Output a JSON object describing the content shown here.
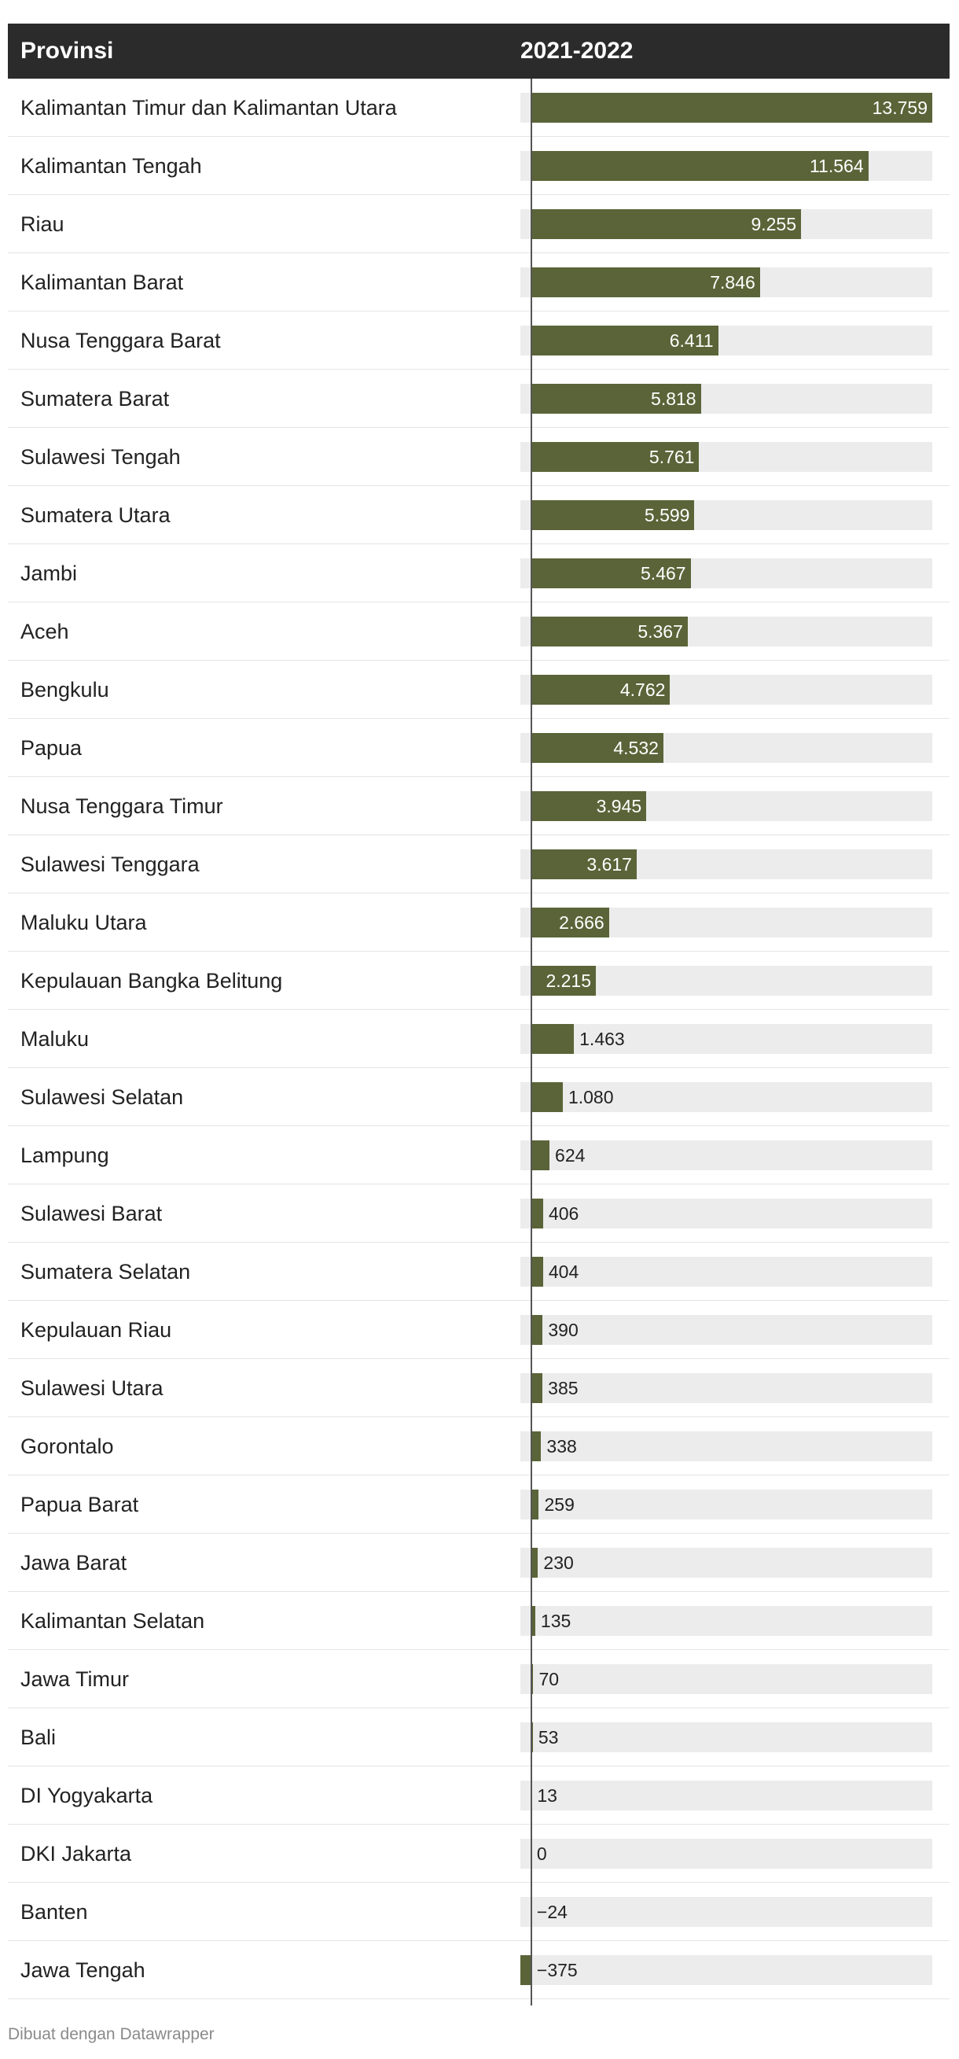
{
  "header": {
    "col1": "Provinsi",
    "col2": "2021-2022"
  },
  "footer": {
    "credit": "Dibuat dengan Datawrapper"
  },
  "colors": {
    "header_bg": "#2b2b2b",
    "bar": "#5a6438",
    "track": "#ececec"
  },
  "chart_data": {
    "type": "bar",
    "orientation": "horizontal",
    "categories": [
      "Kalimantan Timur dan Kalimantan Utara",
      "Kalimantan Tengah",
      "Riau",
      "Kalimantan Barat",
      "Nusa Tenggara Barat",
      "Sumatera Barat",
      "Sulawesi Tengah",
      "Sumatera Utara",
      "Jambi",
      "Aceh",
      "Bengkulu",
      "Papua",
      "Nusa Tenggara Timur",
      "Sulawesi Tenggara",
      "Maluku Utara",
      "Kepulauan Bangka Belitung",
      "Maluku",
      "Sulawesi Selatan",
      "Lampung",
      "Sulawesi Barat",
      "Sumatera Selatan",
      "Kepulauan Riau",
      "Sulawesi Utara",
      "Gorontalo",
      "Papua Barat",
      "Jawa Barat",
      "Kalimantan Selatan",
      "Jawa Timur",
      "Bali",
      "DI Yogyakarta",
      "DKI Jakarta",
      "Banten",
      "Jawa Tengah"
    ],
    "values": [
      13759,
      11564,
      9255,
      7846,
      6411,
      5818,
      5761,
      5599,
      5467,
      5367,
      4762,
      4532,
      3945,
      3617,
      2666,
      2215,
      1463,
      1080,
      624,
      406,
      404,
      390,
      385,
      338,
      259,
      230,
      135,
      70,
      53,
      13,
      0,
      -24,
      -375
    ],
    "value_labels": [
      "13.759",
      "11.564",
      "9.255",
      "7.846",
      "6.411",
      "5.818",
      "5.761",
      "5.599",
      "5.467",
      "5.367",
      "4.762",
      "4.532",
      "3.945",
      "3.617",
      "2.666",
      "2.215",
      "1.463",
      "1.080",
      "624",
      "406",
      "404",
      "390",
      "385",
      "338",
      "259",
      "230",
      "135",
      "70",
      "53",
      "13",
      "0",
      "−24",
      "−375"
    ],
    "xlim": [
      -375,
      13759
    ]
  }
}
